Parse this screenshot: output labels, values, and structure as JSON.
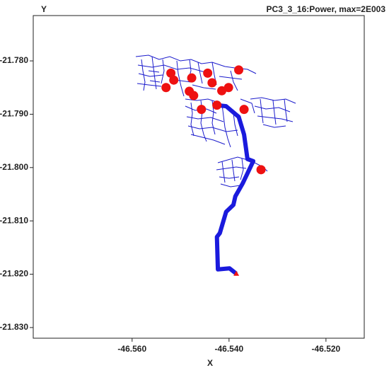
{
  "chart_data": {
    "type": "scatter",
    "title": "PC3_3_16:Power, max=2E003",
    "x_label": "X",
    "y_label": "Y",
    "xlim": [
      -46.5804,
      -46.5121
    ],
    "ylim": [
      -21.832,
      -21.7715
    ],
    "xticks": [
      {
        "value": -46.56,
        "label": "-46.560"
      },
      {
        "value": -46.54,
        "label": "-46.540"
      },
      {
        "value": -46.52,
        "label": "-46.520"
      }
    ],
    "yticks": [
      {
        "value": -21.78,
        "label": "-21.780"
      },
      {
        "value": -21.79,
        "label": "-21.790"
      },
      {
        "value": -21.8,
        "label": "-21.800"
      },
      {
        "value": -21.81,
        "label": "-21.810"
      },
      {
        "value": -21.82,
        "label": "-21.820"
      },
      {
        "value": -21.83,
        "label": "-21.830"
      }
    ],
    "feeder": {
      "color": "#1a1add",
      "x": [
        -46.5385,
        -46.5399,
        -46.5423,
        -46.5425,
        -46.5419,
        -46.5406,
        -46.5391,
        -46.5387,
        -46.5372,
        -46.5362,
        -46.535,
        -46.5362,
        -46.5365,
        -46.5369,
        -46.538,
        -46.5406,
        -46.5425
      ],
      "y": [
        -21.8199,
        -21.8189,
        -21.8191,
        -21.813,
        -21.8123,
        -21.8083,
        -21.807,
        -21.8054,
        -21.803,
        -21.8011,
        -21.7988,
        -21.7984,
        -21.7964,
        -21.7938,
        -21.7905,
        -21.7885,
        -21.7883
      ]
    },
    "points": {
      "color": "#ee1111",
      "x": [
        -46.552,
        -46.5514,
        -46.553,
        -46.5477,
        -46.5444,
        -46.5435,
        -46.538,
        -46.5401,
        -46.5415,
        -46.5482,
        -46.5473,
        -46.5425,
        -46.5457,
        -46.5369,
        -46.5334
      ],
      "y": [
        -21.7823,
        -21.7836,
        -21.785,
        -21.7832,
        -21.7823,
        -21.7841,
        -21.7817,
        -21.785,
        -21.7856,
        -21.7857,
        -21.7865,
        -21.7883,
        -21.7891,
        -21.7891,
        -21.8004
      ]
    },
    "source": {
      "color": "#ee1111",
      "x": -46.5385,
      "y": -21.8199
    }
  }
}
